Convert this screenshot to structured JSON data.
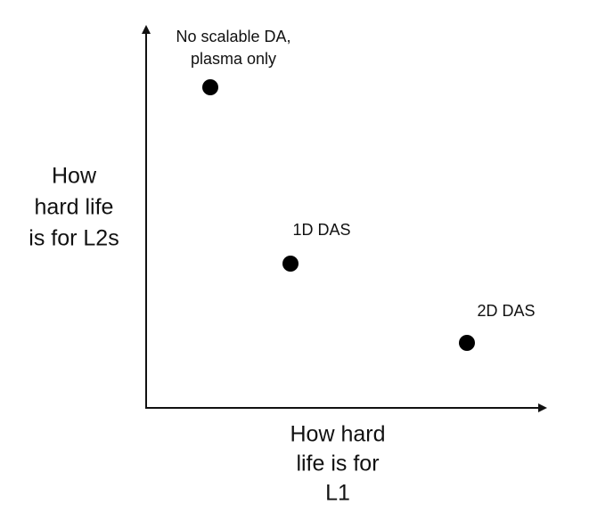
{
  "axes": {
    "y_label": [
      "How",
      "hard life",
      "is for L2s"
    ],
    "x_label": [
      "How hard",
      "life is for",
      "L1"
    ]
  },
  "nodes": [
    {
      "label": [
        "No scalable DA,",
        "plasma only"
      ]
    },
    {
      "label": [
        "1D DAS"
      ]
    },
    {
      "label": [
        "2D DAS"
      ]
    }
  ]
}
